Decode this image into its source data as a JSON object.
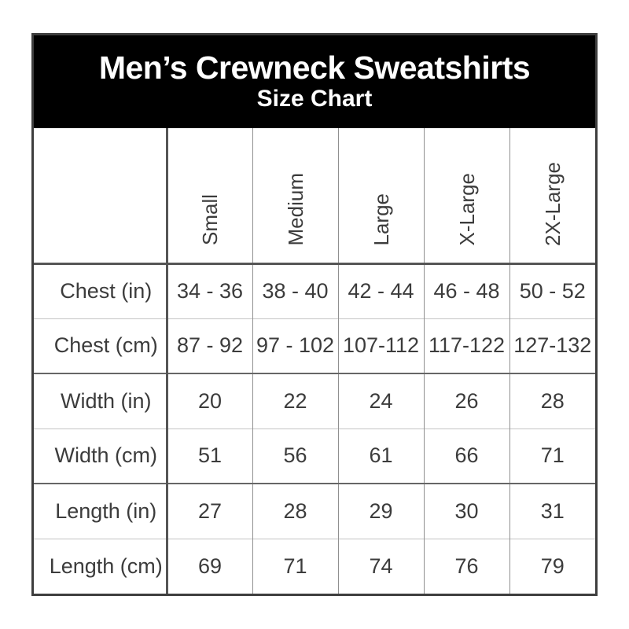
{
  "header": {
    "title": "Men’s Crewneck Sweatshirts",
    "subtitle": "Size Chart"
  },
  "colors": {
    "band_background": "#000000",
    "band_text": "#ffffff",
    "table_text": "#3c3c3c",
    "border_dark": "#3e3e3e",
    "border_light": "#c4c4c4"
  },
  "chart_data": {
    "type": "table",
    "title": "Men’s Crewneck Sweatshirts Size Chart",
    "columns": [
      "Small",
      "Medium",
      "Large",
      "X-Large",
      "2X-Large"
    ],
    "rows": [
      {
        "label": "Chest (in)",
        "values": [
          "34 - 36",
          "38 - 40",
          "42 - 44",
          "46 - 48",
          "50 - 52"
        ]
      },
      {
        "label": "Chest (cm)",
        "values": [
          "87 - 92",
          "97 - 102",
          "107-112",
          "117-122",
          "127-132"
        ]
      },
      {
        "label": "Width (in)",
        "values": [
          "20",
          "22",
          "24",
          "26",
          "28"
        ]
      },
      {
        "label": "Width (cm)",
        "values": [
          "51",
          "56",
          "61",
          "66",
          "71"
        ]
      },
      {
        "label": "Length (in)",
        "values": [
          "27",
          "28",
          "29",
          "30",
          "31"
        ]
      },
      {
        "label": "Length (cm)",
        "values": [
          "69",
          "71",
          "74",
          "76",
          "79"
        ]
      }
    ]
  }
}
